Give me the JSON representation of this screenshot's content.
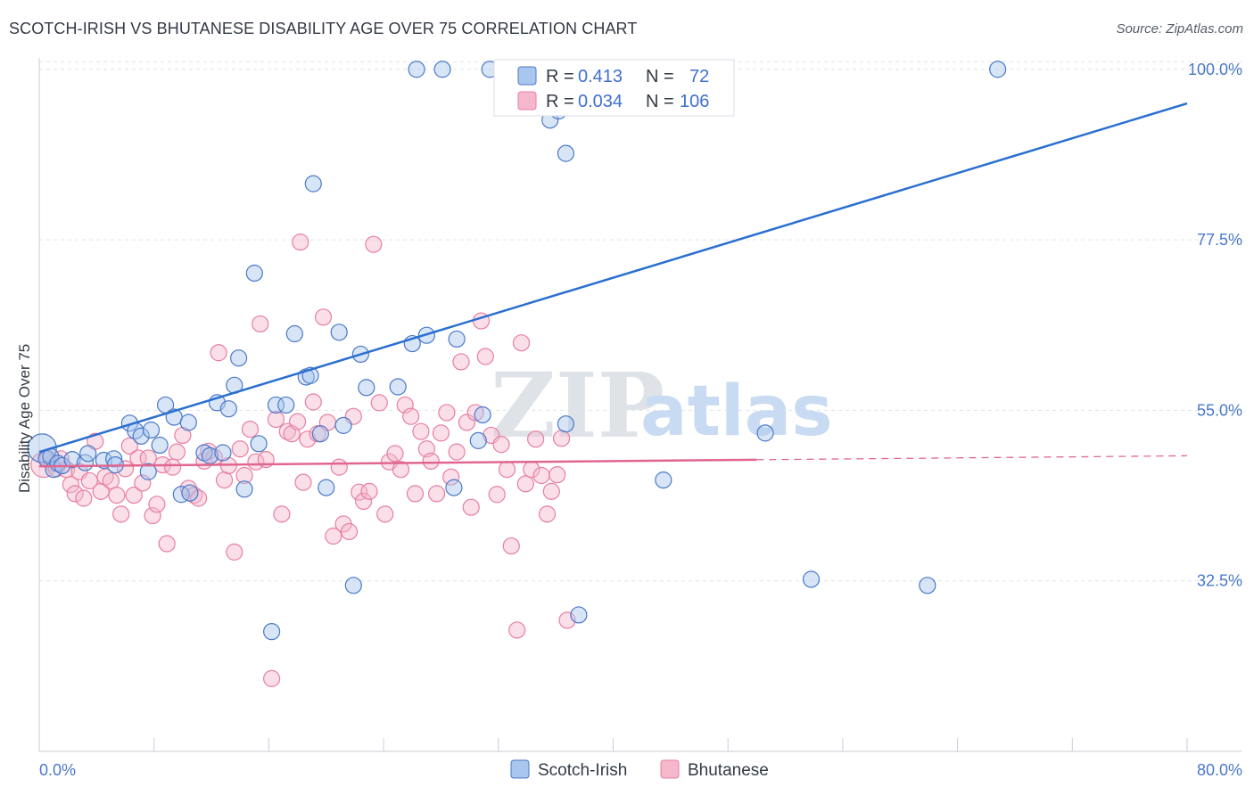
{
  "title": "SCOTCH-IRISH VS BHUTANESE DISABILITY AGE OVER 75 CORRELATION CHART",
  "source": "Source: ZipAtlas.com",
  "watermark": {
    "zip": "ZIP",
    "atlas": "atlas"
  },
  "colors": {
    "blue": "#4a78c8",
    "blue_fill": "#a9c6ee",
    "blue_line": "#2a6fd0",
    "pink": "#e87ea0",
    "pink_fill": "#f5b8cb",
    "pink_line": "#e0668f",
    "grid": "#dfe3ea"
  },
  "legend": {
    "rows": [
      {
        "r_label": "R =",
        "r_value": "0.413",
        "n_label": "N =",
        "n_value": "72",
        "series": "blue"
      },
      {
        "r_label": "R =",
        "r_value": "0.034",
        "n_label": "N =",
        "n_value": "106",
        "series": "pink"
      }
    ]
  },
  "bottom_legend": [
    "Scotch-Irish",
    "Bhutanese"
  ],
  "chart_data": {
    "type": "scatter",
    "title": "SCOTCH-IRISH VS BHUTANESE DISABILITY AGE OVER 75 CORRELATION CHART",
    "xlabel": "",
    "ylabel": "Disability Age Over 75",
    "xlim": [
      0,
      80
    ],
    "ylim": [
      10,
      101.5
    ],
    "x_tick_labels": [
      "0.0%",
      "80.0%"
    ],
    "y_ticks": [
      32.5,
      55.0,
      77.5,
      100.0
    ],
    "y_tick_labels": [
      "32.5%",
      "55.0%",
      "77.5%",
      "100.0%"
    ],
    "grid": true,
    "legend_position": "top-center",
    "series": [
      {
        "name": "Scotch-Irish",
        "color": "#4a78c8",
        "trend": {
          "x": [
            0,
            80
          ],
          "y": [
            49.5,
            95.5
          ],
          "dashed_from": null
        },
        "points": [
          [
            0.2,
            50.0,
            16
          ],
          [
            0.5,
            48.6,
            9
          ],
          [
            0.8,
            48.9,
            9
          ],
          [
            1.0,
            47.2,
            9
          ],
          [
            1.3,
            48.0,
            9
          ],
          [
            1.6,
            47.7,
            9
          ],
          [
            2.3,
            48.5,
            9
          ],
          [
            3.2,
            48.1,
            9
          ],
          [
            3.4,
            49.3,
            9
          ],
          [
            4.5,
            48.4,
            9
          ],
          [
            5.2,
            48.6,
            9
          ],
          [
            5.3,
            47.8,
            9
          ],
          [
            6.3,
            53.3,
            9
          ],
          [
            6.7,
            52.3,
            9
          ],
          [
            7.1,
            51.6,
            9
          ],
          [
            7.8,
            52.4,
            9
          ],
          [
            8.4,
            50.4,
            9
          ],
          [
            8.8,
            55.7,
            9
          ],
          [
            9.4,
            54.1,
            9
          ],
          [
            9.9,
            43.9,
            9
          ],
          [
            10.5,
            44.1,
            9
          ],
          [
            10.4,
            53.4,
            9
          ],
          [
            11.5,
            49.4,
            9
          ],
          [
            11.9,
            49.0,
            9
          ],
          [
            12.4,
            56.0,
            9
          ],
          [
            12.8,
            49.4,
            9
          ],
          [
            13.2,
            55.2,
            9
          ],
          [
            13.6,
            58.3,
            9
          ],
          [
            13.9,
            61.9,
            9
          ],
          [
            14.3,
            44.6,
            9
          ],
          [
            15.0,
            73.1,
            9
          ],
          [
            15.3,
            50.6,
            9
          ],
          [
            16.5,
            55.7,
            9
          ],
          [
            17.2,
            55.7,
            9
          ],
          [
            17.8,
            65.1,
            9
          ],
          [
            18.6,
            59.4,
            9
          ],
          [
            18.9,
            59.6,
            9
          ],
          [
            19.1,
            84.9,
            9
          ],
          [
            19.6,
            51.9,
            9
          ],
          [
            20.0,
            44.8,
            9
          ],
          [
            20.9,
            65.3,
            9
          ],
          [
            21.2,
            53.0,
            9
          ],
          [
            21.9,
            31.9,
            9
          ],
          [
            22.4,
            62.4,
            9
          ],
          [
            22.8,
            58.0,
            9
          ],
          [
            25.0,
            58.1,
            9
          ],
          [
            26.0,
            63.8,
            9
          ],
          [
            26.3,
            100.0,
            9
          ],
          [
            27.0,
            64.9,
            9
          ],
          [
            28.1,
            100.0,
            9
          ],
          [
            28.9,
            44.8,
            9
          ],
          [
            29.1,
            64.4,
            9
          ],
          [
            30.6,
            51.0,
            9
          ],
          [
            30.9,
            54.4,
            9
          ],
          [
            31.4,
            100.0,
            9
          ],
          [
            33.3,
            100.0,
            9
          ],
          [
            35.0,
            100.0,
            9
          ],
          [
            35.6,
            93.3,
            9
          ],
          [
            36.2,
            94.5,
            9
          ],
          [
            36.7,
            88.9,
            9
          ],
          [
            36.7,
            53.2,
            9
          ],
          [
            37.6,
            28.0,
            9
          ],
          [
            38.9,
            100.0,
            9
          ],
          [
            39.8,
            100.0,
            9
          ],
          [
            41.6,
            100.0,
            9
          ],
          [
            43.5,
            45.8,
            9
          ],
          [
            50.6,
            52.0,
            9
          ],
          [
            53.8,
            32.7,
            9
          ],
          [
            61.9,
            31.9,
            9
          ],
          [
            66.8,
            100.0,
            9
          ],
          [
            16.2,
            25.8,
            9
          ],
          [
            7.6,
            46.9,
            9
          ]
        ]
      },
      {
        "name": "Bhutanese",
        "color": "#e87ea0",
        "trend": {
          "x": [
            0,
            80
          ],
          "y": [
            47.6,
            49.0
          ],
          "dashed_from": 50
        },
        "points": [
          [
            0.3,
            47.8,
            14
          ],
          [
            0.6,
            48.7,
            9
          ],
          [
            0.9,
            48.0,
            9
          ],
          [
            1.2,
            47.3,
            9
          ],
          [
            1.5,
            48.6,
            9
          ],
          [
            1.9,
            47.2,
            9
          ],
          [
            2.2,
            45.2,
            9
          ],
          [
            2.5,
            44.0,
            9
          ],
          [
            2.8,
            46.9,
            9
          ],
          [
            3.1,
            43.4,
            9
          ],
          [
            3.5,
            45.7,
            9
          ],
          [
            3.9,
            50.9,
            9
          ],
          [
            4.3,
            44.3,
            9
          ],
          [
            4.6,
            46.2,
            9
          ],
          [
            5.0,
            45.7,
            9
          ],
          [
            5.4,
            43.8,
            9
          ],
          [
            5.7,
            41.3,
            9
          ],
          [
            6.0,
            47.3,
            9
          ],
          [
            6.3,
            50.3,
            9
          ],
          [
            6.6,
            43.8,
            9
          ],
          [
            6.9,
            48.7,
            9
          ],
          [
            7.2,
            45.4,
            9
          ],
          [
            7.6,
            48.7,
            9
          ],
          [
            7.9,
            41.1,
            9
          ],
          [
            8.2,
            42.6,
            9
          ],
          [
            8.6,
            47.8,
            9
          ],
          [
            8.9,
            37.4,
            9
          ],
          [
            9.3,
            47.5,
            9
          ],
          [
            9.6,
            49.5,
            9
          ],
          [
            10.0,
            51.7,
            9
          ],
          [
            10.4,
            44.7,
            9
          ],
          [
            10.8,
            43.8,
            9
          ],
          [
            11.1,
            43.4,
            9
          ],
          [
            11.5,
            48.3,
            9
          ],
          [
            11.8,
            49.6,
            9
          ],
          [
            12.2,
            48.8,
            9
          ],
          [
            12.5,
            62.6,
            9
          ],
          [
            12.9,
            45.8,
            9
          ],
          [
            13.2,
            47.7,
            9
          ],
          [
            13.6,
            36.3,
            9
          ],
          [
            14.0,
            49.9,
            9
          ],
          [
            14.3,
            46.4,
            9
          ],
          [
            14.7,
            52.5,
            9
          ],
          [
            15.1,
            48.2,
            9
          ],
          [
            15.4,
            66.4,
            9
          ],
          [
            15.8,
            48.5,
            9
          ],
          [
            16.2,
            19.6,
            9
          ],
          [
            16.5,
            53.8,
            9
          ],
          [
            16.9,
            41.3,
            9
          ],
          [
            17.3,
            52.2,
            9
          ],
          [
            17.6,
            51.9,
            9
          ],
          [
            18.0,
            53.5,
            9
          ],
          [
            18.2,
            77.2,
            9
          ],
          [
            18.4,
            45.5,
            9
          ],
          [
            18.7,
            51.2,
            9
          ],
          [
            19.1,
            56.1,
            9
          ],
          [
            19.4,
            51.9,
            9
          ],
          [
            19.8,
            67.3,
            9
          ],
          [
            20.1,
            53.4,
            9
          ],
          [
            20.5,
            38.4,
            9
          ],
          [
            20.9,
            47.5,
            9
          ],
          [
            21.2,
            40.0,
            9
          ],
          [
            21.6,
            39.0,
            9
          ],
          [
            21.9,
            54.2,
            9
          ],
          [
            22.3,
            44.2,
            9
          ],
          [
            22.6,
            43.0,
            9
          ],
          [
            23.0,
            44.3,
            9
          ],
          [
            23.3,
            76.9,
            9
          ],
          [
            23.7,
            56.0,
            9
          ],
          [
            24.1,
            41.3,
            9
          ],
          [
            24.4,
            48.2,
            9
          ],
          [
            24.8,
            49.3,
            9
          ],
          [
            25.2,
            47.2,
            9
          ],
          [
            25.5,
            55.7,
            9
          ],
          [
            25.9,
            54.2,
            9
          ],
          [
            26.2,
            44.0,
            9
          ],
          [
            26.6,
            52.2,
            9
          ],
          [
            27.0,
            49.9,
            9
          ],
          [
            27.3,
            48.3,
            9
          ],
          [
            27.7,
            44.0,
            9
          ],
          [
            28.0,
            52.0,
            9
          ],
          [
            28.4,
            54.7,
            9
          ],
          [
            28.7,
            46.2,
            9
          ],
          [
            29.1,
            49.5,
            9
          ],
          [
            29.4,
            61.4,
            9
          ],
          [
            29.8,
            53.4,
            9
          ],
          [
            30.1,
            42.2,
            9
          ],
          [
            30.4,
            54.7,
            9
          ],
          [
            30.8,
            66.8,
            9
          ],
          [
            31.1,
            62.1,
            9
          ],
          [
            31.5,
            51.7,
            9
          ],
          [
            31.9,
            43.9,
            9
          ],
          [
            32.2,
            50.5,
            9
          ],
          [
            32.6,
            47.2,
            9
          ],
          [
            32.9,
            37.1,
            9
          ],
          [
            33.3,
            26.0,
            9
          ],
          [
            33.6,
            63.9,
            9
          ],
          [
            33.9,
            45.3,
            9
          ],
          [
            34.3,
            47.2,
            9
          ],
          [
            34.6,
            51.2,
            9
          ],
          [
            35.0,
            46.4,
            9
          ],
          [
            35.4,
            41.3,
            9
          ],
          [
            35.7,
            44.3,
            9
          ],
          [
            36.1,
            46.5,
            9
          ],
          [
            36.4,
            51.3,
            9
          ],
          [
            36.8,
            27.3,
            9
          ]
        ]
      }
    ]
  }
}
